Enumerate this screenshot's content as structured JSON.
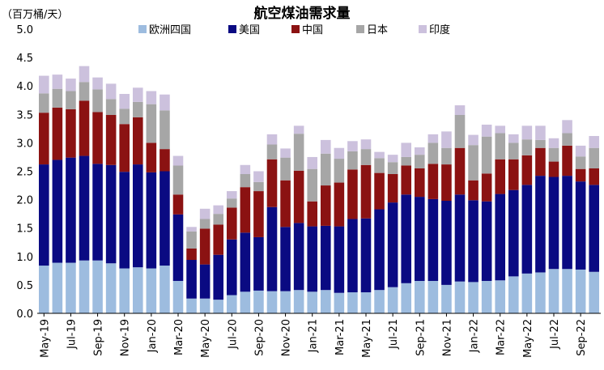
{
  "chart_data": {
    "type": "bar",
    "stacked": true,
    "title": "航空煤油需求量",
    "unit_label": "（百万桶/天）",
    "ylim": [
      0,
      5
    ],
    "yticks": [
      "0.0",
      "0.5",
      "1.0",
      "1.5",
      "2.0",
      "2.5",
      "3.0",
      "3.5",
      "4.0",
      "4.5",
      "5.0"
    ],
    "tick_labels": [
      "May-19",
      "Jul-19",
      "Sep-19",
      "Nov-19",
      "Jan-20",
      "Mar-20",
      "May-20",
      "Jul-20",
      "Sep-20",
      "Nov-20",
      "Jan-21",
      "Mar-21",
      "May-21",
      "Jul-21",
      "Sep-21",
      "Nov-21",
      "Jan-22",
      "Mar-22",
      "May-22",
      "Jul-22",
      "Sep-22"
    ],
    "categories": [
      "May-19",
      "Jun-19",
      "Jul-19",
      "Aug-19",
      "Sep-19",
      "Oct-19",
      "Nov-19",
      "Dec-19",
      "Jan-20",
      "Feb-20",
      "Mar-20",
      "Apr-20",
      "May-20",
      "Jun-20",
      "Jul-20",
      "Aug-20",
      "Sep-20",
      "Oct-20",
      "Nov-20",
      "Dec-20",
      "Jan-21",
      "Feb-21",
      "Mar-21",
      "Apr-21",
      "May-21",
      "Jun-21",
      "Jul-21",
      "Aug-21",
      "Sep-21",
      "Oct-21",
      "Nov-21",
      "Dec-21",
      "Jan-22",
      "Feb-22",
      "Mar-22",
      "Apr-22",
      "May-22",
      "Jun-22",
      "Jul-22",
      "Aug-22",
      "Sep-22",
      "Oct-22"
    ],
    "series": [
      {
        "name": "欧洲四国",
        "color": "#9dbcdf",
        "values": [
          0.84,
          0.89,
          0.89,
          0.93,
          0.93,
          0.88,
          0.79,
          0.81,
          0.79,
          0.84,
          0.57,
          0.26,
          0.26,
          0.24,
          0.32,
          0.38,
          0.4,
          0.39,
          0.39,
          0.41,
          0.38,
          0.41,
          0.36,
          0.37,
          0.37,
          0.41,
          0.46,
          0.53,
          0.57,
          0.57,
          0.5,
          0.56,
          0.55,
          0.57,
          0.58,
          0.65,
          0.7,
          0.72,
          0.78,
          0.78,
          0.77,
          0.73
        ]
      },
      {
        "name": "美国",
        "color": "#0a0a82",
        "values": [
          1.78,
          1.81,
          1.85,
          1.84,
          1.7,
          1.73,
          1.7,
          1.81,
          1.69,
          1.66,
          1.17,
          0.68,
          0.6,
          0.79,
          0.98,
          1.04,
          0.94,
          1.48,
          1.13,
          1.18,
          1.15,
          1.13,
          1.17,
          1.29,
          1.3,
          1.42,
          1.49,
          1.56,
          1.48,
          1.44,
          1.48,
          1.53,
          1.44,
          1.4,
          1.52,
          1.52,
          1.56,
          1.7,
          1.62,
          1.64,
          1.55,
          1.53
        ]
      },
      {
        "name": "中国",
        "color": "#8b1212",
        "values": [
          0.91,
          0.92,
          0.85,
          0.97,
          0.91,
          0.88,
          0.84,
          0.83,
          0.52,
          0.39,
          0.35,
          0.2,
          0.63,
          0.53,
          0.56,
          0.8,
          0.81,
          0.84,
          0.82,
          0.92,
          0.44,
          0.71,
          0.77,
          0.87,
          0.94,
          0.64,
          0.5,
          0.51,
          0.5,
          0.62,
          0.64,
          0.82,
          0.35,
          0.49,
          0.61,
          0.54,
          0.52,
          0.49,
          0.27,
          0.53,
          0.22,
          0.29
        ]
      },
      {
        "name": "日本",
        "color": "#a6a6a6",
        "values": [
          0.34,
          0.33,
          0.32,
          0.33,
          0.4,
          0.28,
          0.27,
          0.27,
          0.68,
          0.68,
          0.51,
          0.3,
          0.17,
          0.19,
          0.16,
          0.23,
          0.16,
          0.26,
          0.4,
          0.65,
          0.57,
          0.56,
          0.42,
          0.32,
          0.28,
          0.26,
          0.21,
          0.15,
          0.24,
          0.37,
          0.29,
          0.58,
          0.62,
          0.65,
          0.46,
          0.29,
          0.28,
          0.14,
          0.24,
          0.22,
          0.22,
          0.36
        ]
      },
      {
        "name": "印度",
        "color": "#ccc1dd",
        "values": [
          0.31,
          0.25,
          0.22,
          0.28,
          0.21,
          0.27,
          0.26,
          0.25,
          0.23,
          0.28,
          0.17,
          0.08,
          0.18,
          0.15,
          0.13,
          0.16,
          0.19,
          0.18,
          0.16,
          0.14,
          0.21,
          0.24,
          0.19,
          0.18,
          0.17,
          0.11,
          0.13,
          0.25,
          0.13,
          0.15,
          0.29,
          0.17,
          0.18,
          0.21,
          0.13,
          0.15,
          0.24,
          0.25,
          0.17,
          0.23,
          0.19,
          0.21
        ]
      }
    ]
  }
}
